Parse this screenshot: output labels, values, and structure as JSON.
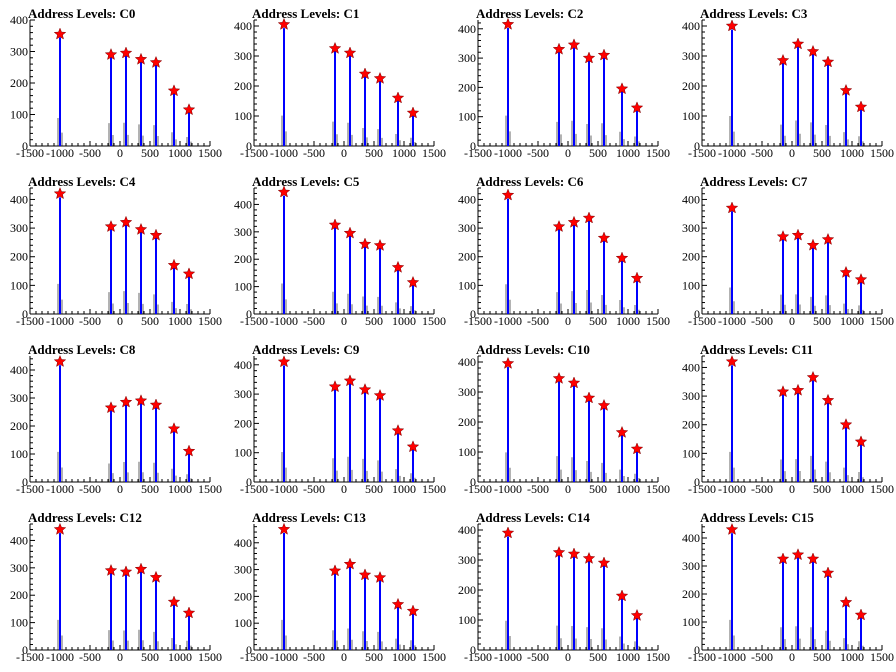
{
  "chart_data": [
    {
      "type": "bar",
      "title": "Address Levels: C0",
      "x": [
        -1000,
        -150,
        100,
        350,
        600,
        900,
        1150
      ],
      "peaks": [
        355,
        290,
        295,
        275,
        265,
        175,
        115
      ],
      "ylim": [
        0,
        400
      ],
      "yticks": [
        0,
        100,
        200,
        300,
        400
      ],
      "xlim": [
        -1500,
        1500
      ],
      "xticks": [
        -1500,
        -1000,
        -500,
        0,
        500,
        1000,
        1500
      ]
    },
    {
      "type": "bar",
      "title": "Address Levels: C1",
      "x": [
        -1000,
        -150,
        100,
        350,
        600,
        900,
        1150
      ],
      "peaks": [
        405,
        325,
        310,
        240,
        225,
        160,
        110
      ],
      "ylim": [
        0,
        420
      ],
      "yticks": [
        0,
        100,
        200,
        300,
        400
      ],
      "xlim": [
        -1500,
        1500
      ],
      "xticks": [
        -1500,
        -1000,
        -500,
        0,
        500,
        1000,
        1500
      ]
    },
    {
      "type": "bar",
      "title": "Address Levels: C2",
      "x": [
        -1000,
        -150,
        100,
        350,
        600,
        900,
        1150
      ],
      "peaks": [
        415,
        330,
        345,
        300,
        310,
        195,
        130
      ],
      "ylim": [
        0,
        430
      ],
      "yticks": [
        0,
        100,
        200,
        300,
        400
      ],
      "xlim": [
        -1500,
        1500
      ],
      "xticks": [
        -1500,
        -1000,
        -500,
        0,
        500,
        1000,
        1500
      ]
    },
    {
      "type": "bar",
      "title": "Address Levels: C3",
      "x": [
        -1000,
        -150,
        100,
        350,
        600,
        900,
        1150
      ],
      "peaks": [
        400,
        285,
        340,
        315,
        280,
        185,
        130
      ],
      "ylim": [
        0,
        420
      ],
      "yticks": [
        0,
        100,
        200,
        300,
        400
      ],
      "xlim": [
        -1500,
        1500
      ],
      "xticks": [
        -1500,
        -1000,
        -500,
        0,
        500,
        1000,
        1500
      ]
    },
    {
      "type": "bar",
      "title": "Address Levels: C4",
      "x": [
        -1000,
        -150,
        100,
        350,
        600,
        900,
        1150
      ],
      "peaks": [
        420,
        305,
        320,
        295,
        275,
        170,
        140
      ],
      "ylim": [
        0,
        440
      ],
      "yticks": [
        0,
        100,
        200,
        300,
        400
      ],
      "xlim": [
        -1500,
        1500
      ],
      "xticks": [
        -1500,
        -1000,
        -500,
        0,
        500,
        1000,
        1500
      ]
    },
    {
      "type": "bar",
      "title": "Address Levels: C5",
      "x": [
        -1000,
        -150,
        100,
        350,
        600,
        900,
        1150
      ],
      "peaks": [
        445,
        325,
        295,
        255,
        250,
        170,
        115
      ],
      "ylim": [
        0,
        460
      ],
      "yticks": [
        0,
        100,
        200,
        300,
        400
      ],
      "xlim": [
        -1500,
        1500
      ],
      "xticks": [
        -1500,
        -1000,
        -500,
        0,
        500,
        1000,
        1500
      ]
    },
    {
      "type": "bar",
      "title": "Address Levels: C6",
      "x": [
        -1000,
        -150,
        100,
        350,
        600,
        900,
        1150
      ],
      "peaks": [
        415,
        305,
        320,
        335,
        265,
        195,
        125
      ],
      "ylim": [
        0,
        440
      ],
      "yticks": [
        0,
        100,
        200,
        300,
        400
      ],
      "xlim": [
        -1500,
        1500
      ],
      "xticks": [
        -1500,
        -1000,
        -500,
        0,
        500,
        1000,
        1500
      ]
    },
    {
      "type": "bar",
      "title": "Address Levels: C7",
      "x": [
        -1000,
        -150,
        100,
        350,
        600,
        900,
        1150
      ],
      "peaks": [
        370,
        270,
        275,
        240,
        260,
        145,
        120
      ],
      "ylim": [
        0,
        440
      ],
      "yticks": [
        0,
        100,
        200,
        300,
        400
      ],
      "xlim": [
        -1500,
        1500
      ],
      "xticks": [
        -1500,
        -1000,
        -500,
        0,
        500,
        1000,
        1500
      ]
    },
    {
      "type": "bar",
      "title": "Address Levels: C8",
      "x": [
        -1000,
        -150,
        100,
        350,
        600,
        900,
        1150
      ],
      "peaks": [
        430,
        265,
        285,
        290,
        275,
        190,
        110
      ],
      "ylim": [
        0,
        450
      ],
      "yticks": [
        0,
        100,
        200,
        300,
        400
      ],
      "xlim": [
        -1500,
        1500
      ],
      "xticks": [
        -1500,
        -1000,
        -500,
        0,
        500,
        1000,
        1500
      ]
    },
    {
      "type": "bar",
      "title": "Address Levels: C9",
      "x": [
        -1000,
        -150,
        100,
        350,
        600,
        900,
        1150
      ],
      "peaks": [
        410,
        325,
        345,
        315,
        295,
        175,
        120
      ],
      "ylim": [
        0,
        430
      ],
      "yticks": [
        0,
        100,
        200,
        300,
        400
      ],
      "xlim": [
        -1500,
        1500
      ],
      "xticks": [
        -1500,
        -1000,
        -500,
        0,
        500,
        1000,
        1500
      ]
    },
    {
      "type": "bar",
      "title": "Address Levels: C10",
      "x": [
        -1000,
        -150,
        100,
        350,
        600,
        900,
        1150
      ],
      "peaks": [
        395,
        345,
        330,
        280,
        255,
        165,
        110
      ],
      "ylim": [
        0,
        420
      ],
      "yticks": [
        0,
        100,
        200,
        300,
        400
      ],
      "xlim": [
        -1500,
        1500
      ],
      "xticks": [
        -1500,
        -1000,
        -500,
        0,
        500,
        1000,
        1500
      ]
    },
    {
      "type": "bar",
      "title": "Address Levels: C11",
      "x": [
        -1000,
        -150,
        100,
        350,
        600,
        900,
        1150
      ],
      "peaks": [
        420,
        315,
        320,
        365,
        285,
        200,
        140
      ],
      "ylim": [
        0,
        440
      ],
      "yticks": [
        0,
        100,
        200,
        300,
        400
      ],
      "xlim": [
        -1500,
        1500
      ],
      "xticks": [
        -1500,
        -1000,
        -500,
        0,
        500,
        1000,
        1500
      ]
    },
    {
      "type": "bar",
      "title": "Address Levels: C12",
      "x": [
        -1000,
        -150,
        100,
        350,
        600,
        900,
        1150
      ],
      "peaks": [
        440,
        290,
        285,
        295,
        265,
        175,
        135
      ],
      "ylim": [
        0,
        460
      ],
      "yticks": [
        0,
        100,
        200,
        300,
        400
      ],
      "xlim": [
        -1500,
        1500
      ],
      "xticks": [
        -1500,
        -1000,
        -500,
        0,
        500,
        1000,
        1500
      ]
    },
    {
      "type": "bar",
      "title": "Address Levels: C13",
      "x": [
        -1000,
        -150,
        100,
        350,
        600,
        900,
        1150
      ],
      "peaks": [
        450,
        295,
        320,
        280,
        270,
        170,
        145
      ],
      "ylim": [
        0,
        470
      ],
      "yticks": [
        0,
        100,
        200,
        300,
        400
      ],
      "xlim": [
        -1500,
        1500
      ],
      "xticks": [
        -1500,
        -1000,
        -500,
        0,
        500,
        1000,
        1500
      ]
    },
    {
      "type": "bar",
      "title": "Address Levels: C14",
      "x": [
        -1000,
        -150,
        100,
        350,
        600,
        900,
        1150
      ],
      "peaks": [
        390,
        325,
        320,
        305,
        290,
        180,
        115
      ],
      "ylim": [
        0,
        420
      ],
      "yticks": [
        0,
        100,
        200,
        300,
        400
      ],
      "xlim": [
        -1500,
        1500
      ],
      "xticks": [
        -1500,
        -1000,
        -500,
        0,
        500,
        1000,
        1500
      ]
    },
    {
      "type": "bar",
      "title": "Address Levels: C15",
      "x": [
        -1000,
        -150,
        100,
        350,
        600,
        900,
        1150
      ],
      "peaks": [
        430,
        325,
        340,
        325,
        275,
        170,
        125
      ],
      "ylim": [
        0,
        450
      ],
      "yticks": [
        0,
        100,
        200,
        300,
        400
      ],
      "xlim": [
        -1500,
        1500
      ],
      "xticks": [
        -1500,
        -1000,
        -500,
        0,
        500,
        1000,
        1500
      ]
    }
  ],
  "colors": {
    "histogram": "#0000ff",
    "outline": "#000000",
    "marker": "#ff0000"
  }
}
